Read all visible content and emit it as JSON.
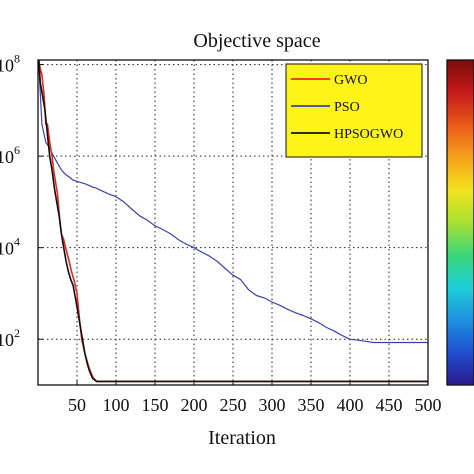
{
  "chart_data": {
    "type": "line",
    "title": "Objective space",
    "xlabel": "Iteration",
    "ylabel": "",
    "y_scale": "log",
    "xlim": [
      0,
      500
    ],
    "ylim": [
      10,
      100000000
    ],
    "grid": "on",
    "legend_placement": "top-right",
    "x_ticks": [
      "50",
      "100",
      "150",
      "200",
      "250",
      "300",
      "350",
      "400",
      "450",
      "500"
    ],
    "y_ticks": [
      {
        "value": 100000000,
        "base": "10",
        "exp": "8"
      },
      {
        "value": 1000000,
        "base": "10",
        "exp": "6"
      },
      {
        "value": 10000,
        "base": "10",
        "exp": "4"
      },
      {
        "value": 100,
        "base": "10",
        "exp": "2"
      }
    ],
    "series": [
      {
        "name": "GWO",
        "color": "#e8281e",
        "x": [
          1,
          3,
          5,
          8,
          10,
          12,
          15,
          18,
          20,
          22,
          25,
          28,
          30,
          33,
          36,
          40,
          43,
          46,
          50,
          53,
          56,
          60,
          65,
          70,
          75,
          80,
          500
        ],
        "y": [
          200000000,
          80000000,
          60000000,
          20000000,
          5000000,
          5000000,
          2000000,
          1000000,
          500000,
          300000,
          150000,
          40000,
          20000,
          15000,
          9000,
          5000,
          3000,
          2000,
          1000,
          300,
          100,
          50,
          25,
          15,
          12,
          12,
          12
        ]
      },
      {
        "name": "PSO",
        "color": "#3a43a8",
        "x": [
          1,
          5,
          10,
          15,
          20,
          25,
          30,
          35,
          40,
          45,
          50,
          60,
          65,
          70,
          75,
          80,
          90,
          100,
          110,
          120,
          130,
          140,
          150,
          160,
          170,
          180,
          190,
          200,
          210,
          220,
          230,
          240,
          250,
          260,
          270,
          280,
          290,
          300,
          310,
          320,
          330,
          340,
          350,
          360,
          370,
          380,
          390,
          400,
          410,
          420,
          430,
          440,
          450,
          460,
          470,
          480,
          490,
          500
        ],
        "y": [
          100000000,
          5000000,
          2000000,
          1500000,
          1000000,
          700000,
          500000,
          400000,
          350000,
          300000,
          280000,
          250000,
          230000,
          210000,
          200000,
          180000,
          150000,
          130000,
          100000,
          70000,
          50000,
          40000,
          30000,
          25000,
          20000,
          15000,
          12000,
          10000,
          8000,
          6500,
          5000,
          3500,
          2500,
          2000,
          1200,
          900,
          800,
          650,
          550,
          450,
          380,
          330,
          280,
          230,
          180,
          150,
          120,
          100,
          95,
          90,
          85,
          85,
          85,
          85,
          85,
          85,
          85,
          85
        ]
      },
      {
        "name": "HPSOGWO",
        "color": "#111111",
        "x": [
          1,
          3,
          6,
          9,
          12,
          15,
          18,
          21,
          24,
          27,
          30,
          33,
          36,
          39,
          42,
          45,
          48,
          51,
          54,
          57,
          60,
          63,
          66,
          70,
          75,
          80,
          500
        ],
        "y": [
          150000000,
          40000000,
          20000000,
          10000000,
          3000000,
          1000000,
          500000,
          200000,
          100000,
          50000,
          20000,
          10000,
          5000,
          3000,
          2000,
          1500,
          800,
          400,
          200,
          100,
          50,
          30,
          20,
          14,
          12,
          12,
          12
        ]
      }
    ],
    "colorbar": {
      "colors": [
        "#2b1a8f",
        "#1f4fd0",
        "#1e90e0",
        "#1ecfd8",
        "#3bd67a",
        "#a8e030",
        "#f2e21e",
        "#f5a11a",
        "#e85a18",
        "#c41a1a",
        "#7a0c0c"
      ]
    }
  }
}
